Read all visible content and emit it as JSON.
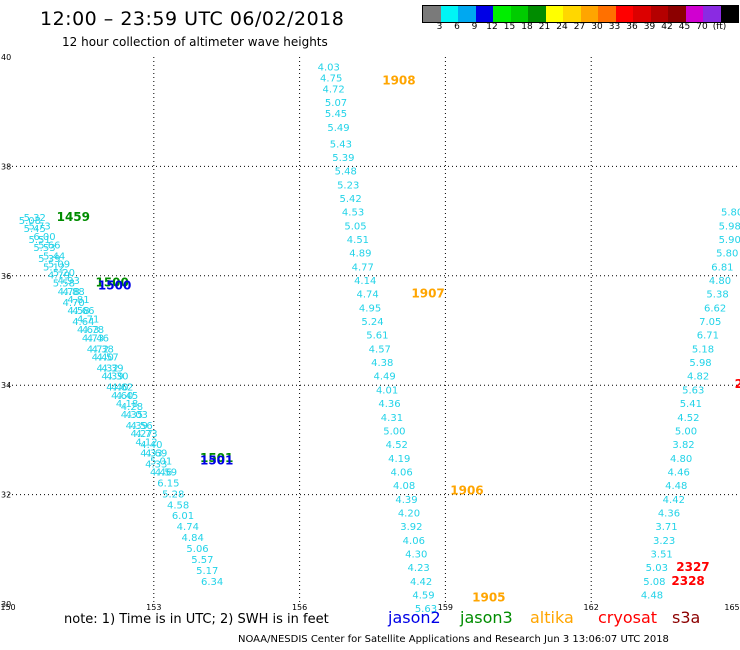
{
  "header": {
    "title": "12:00 – 23:59 UTC 06/02/2018",
    "subtitle": "12 hour collection of altimeter wave heights"
  },
  "colorbar": {
    "colors": [
      "#7a7a7a",
      "#00f5f5",
      "#00a8f0",
      "#0000e6",
      "#00ee00",
      "#00cc00",
      "#008c00",
      "#ffff00",
      "#ffd700",
      "#ffa500",
      "#ff7000",
      "#ff0000",
      "#dc0000",
      "#b40000",
      "#8c0000",
      "#d000d0",
      "#8a2be2",
      "#000000"
    ],
    "labels": [
      "3",
      "6",
      "9",
      "12",
      "15",
      "18",
      "21",
      "24",
      "27",
      "30",
      "33",
      "36",
      "39",
      "42",
      "45",
      "70",
      "(ft)"
    ]
  },
  "axes": {
    "x_ticks": [
      "150",
      "153",
      "156",
      "159",
      "162",
      "165"
    ],
    "y_ticks": [
      "30",
      "32",
      "34",
      "36",
      "38",
      "40"
    ]
  },
  "chart_data": {
    "type": "scatter",
    "xlabel": "",
    "ylabel": "",
    "xlim": [
      150,
      165
    ],
    "ylim": [
      30,
      40
    ],
    "grid": true,
    "swh_color": "#22d3e8",
    "tracks": [
      {
        "points": [
          {
            "x": 150.45,
            "y": 36.95,
            "v": "5.08"
          },
          {
            "x": 150.55,
            "y": 36.8,
            "v": "5.45"
          },
          {
            "x": 150.65,
            "y": 36.6,
            "v": "5.51"
          },
          {
            "x": 150.75,
            "y": 36.45,
            "v": "5.53"
          },
          {
            "x": 150.85,
            "y": 36.25,
            "v": "5.39"
          },
          {
            "x": 150.95,
            "y": 36.1,
            "v": "5.12"
          },
          {
            "x": 151.05,
            "y": 35.95,
            "v": "4.79"
          },
          {
            "x": 151.15,
            "y": 35.8,
            "v": "5.58"
          },
          {
            "x": 151.25,
            "y": 35.65,
            "v": "4.78"
          },
          {
            "x": 151.35,
            "y": 35.45,
            "v": "4.70"
          },
          {
            "x": 151.45,
            "y": 35.3,
            "v": "4.58"
          },
          {
            "x": 151.55,
            "y": 35.1,
            "v": "4.64"
          },
          {
            "x": 151.65,
            "y": 34.95,
            "v": "4.63"
          },
          {
            "x": 151.75,
            "y": 34.8,
            "v": "4.73"
          },
          {
            "x": 151.85,
            "y": 34.6,
            "v": "4.72"
          },
          {
            "x": 151.95,
            "y": 34.45,
            "v": "4.40"
          },
          {
            "x": 152.05,
            "y": 34.25,
            "v": "4.32"
          },
          {
            "x": 152.15,
            "y": 34.1,
            "v": "4.39"
          },
          {
            "x": 152.25,
            "y": 33.9,
            "v": "4.40"
          },
          {
            "x": 152.35,
            "y": 33.75,
            "v": "4.60"
          },
          {
            "x": 152.45,
            "y": 33.6,
            "v": "4.18"
          },
          {
            "x": 152.55,
            "y": 33.4,
            "v": "4.35"
          },
          {
            "x": 152.65,
            "y": 33.2,
            "v": "4.39"
          },
          {
            "x": 152.75,
            "y": 33.05,
            "v": "4.27"
          },
          {
            "x": 152.85,
            "y": 32.9,
            "v": "4.12"
          },
          {
            "x": 152.95,
            "y": 32.7,
            "v": "4.33"
          },
          {
            "x": 153.05,
            "y": 32.5,
            "v": "4.33"
          },
          {
            "x": 153.15,
            "y": 32.35,
            "v": "4.46"
          }
        ]
      },
      {
        "points": [
          {
            "x": 150.55,
            "y": 37.0,
            "v": "5.32"
          },
          {
            "x": 150.65,
            "y": 36.85,
            "v": "5.73"
          },
          {
            "x": 150.75,
            "y": 36.65,
            "v": "6.00"
          },
          {
            "x": 150.85,
            "y": 36.5,
            "v": "5.66"
          },
          {
            "x": 150.95,
            "y": 36.3,
            "v": "5.44"
          },
          {
            "x": 151.05,
            "y": 36.15,
            "v": "5.09"
          },
          {
            "x": 151.15,
            "y": 36.0,
            "v": "5.20"
          },
          {
            "x": 151.25,
            "y": 35.85,
            "v": "4.93"
          },
          {
            "x": 151.35,
            "y": 35.65,
            "v": "4.88"
          },
          {
            "x": 151.45,
            "y": 35.5,
            "v": "4.81"
          },
          {
            "x": 151.55,
            "y": 35.3,
            "v": "4.66"
          },
          {
            "x": 151.65,
            "y": 35.15,
            "v": "4.71"
          },
          {
            "x": 151.75,
            "y": 34.95,
            "v": "4.78"
          },
          {
            "x": 151.85,
            "y": 34.8,
            "v": "4.46"
          },
          {
            "x": 151.95,
            "y": 34.6,
            "v": "4.38"
          },
          {
            "x": 152.05,
            "y": 34.45,
            "v": "4.57"
          },
          {
            "x": 152.15,
            "y": 34.25,
            "v": "4.39"
          },
          {
            "x": 152.25,
            "y": 34.1,
            "v": "4.30"
          },
          {
            "x": 152.35,
            "y": 33.9,
            "v": "4.62"
          },
          {
            "x": 152.45,
            "y": 33.75,
            "v": "4.45"
          },
          {
            "x": 152.55,
            "y": 33.55,
            "v": "4.28"
          },
          {
            "x": 152.65,
            "y": 33.4,
            "v": "4.03"
          },
          {
            "x": 152.75,
            "y": 33.2,
            "v": "4.56"
          },
          {
            "x": 152.85,
            "y": 33.05,
            "v": "4.73"
          },
          {
            "x": 152.95,
            "y": 32.85,
            "v": "4.40"
          },
          {
            "x": 153.05,
            "y": 32.7,
            "v": "4.69"
          },
          {
            "x": 153.15,
            "y": 32.55,
            "v": "5.01"
          },
          {
            "x": 153.25,
            "y": 32.35,
            "v": "4.59"
          },
          {
            "x": 153.3,
            "y": 32.15,
            "v": "6.15"
          },
          {
            "x": 153.4,
            "y": 31.95,
            "v": "5.28"
          },
          {
            "x": 153.5,
            "y": 31.75,
            "v": "4.58"
          },
          {
            "x": 153.6,
            "y": 31.55,
            "v": "6.01"
          },
          {
            "x": 153.7,
            "y": 31.35,
            "v": "4.74"
          },
          {
            "x": 153.8,
            "y": 31.15,
            "v": "4.84"
          },
          {
            "x": 153.9,
            "y": 30.95,
            "v": "5.06"
          },
          {
            "x": 154.0,
            "y": 30.75,
            "v": "5.57"
          },
          {
            "x": 154.1,
            "y": 30.55,
            "v": "5.17"
          },
          {
            "x": 154.2,
            "y": 30.35,
            "v": "6.34"
          }
        ]
      },
      {
        "points": [
          {
            "x": 156.6,
            "y": 39.75,
            "v": "4.03"
          },
          {
            "x": 156.65,
            "y": 39.55,
            "v": "4.75"
          },
          {
            "x": 156.7,
            "y": 39.35,
            "v": "4.72"
          },
          {
            "x": 156.75,
            "y": 39.1,
            "v": "5.07"
          },
          {
            "x": 156.75,
            "y": 38.9,
            "v": "5.45"
          },
          {
            "x": 156.8,
            "y": 38.65,
            "v": "5.49"
          },
          {
            "x": 156.85,
            "y": 38.35,
            "v": "5.43"
          },
          {
            "x": 156.9,
            "y": 38.1,
            "v": "5.39"
          },
          {
            "x": 156.95,
            "y": 37.85,
            "v": "5.48"
          },
          {
            "x": 157.0,
            "y": 37.6,
            "v": "5.23"
          },
          {
            "x": 157.05,
            "y": 37.35,
            "v": "5.42"
          },
          {
            "x": 157.1,
            "y": 37.1,
            "v": "4.53"
          },
          {
            "x": 157.15,
            "y": 36.85,
            "v": "5.05"
          },
          {
            "x": 157.2,
            "y": 36.6,
            "v": "4.51"
          },
          {
            "x": 157.25,
            "y": 36.35,
            "v": "4.89"
          },
          {
            "x": 157.3,
            "y": 36.1,
            "v": "4.77"
          },
          {
            "x": 157.35,
            "y": 35.85,
            "v": "4.14"
          },
          {
            "x": 157.4,
            "y": 35.6,
            "v": "4.74"
          },
          {
            "x": 157.45,
            "y": 35.35,
            "v": "4.95"
          },
          {
            "x": 157.5,
            "y": 35.1,
            "v": "5.24"
          },
          {
            "x": 157.6,
            "y": 34.85,
            "v": "5.61"
          },
          {
            "x": 157.65,
            "y": 34.6,
            "v": "4.57"
          },
          {
            "x": 157.7,
            "y": 34.35,
            "v": "4.38"
          },
          {
            "x": 157.75,
            "y": 34.1,
            "v": "4.49"
          },
          {
            "x": 157.8,
            "y": 33.85,
            "v": "4.01"
          },
          {
            "x": 157.85,
            "y": 33.6,
            "v": "4.36"
          },
          {
            "x": 157.9,
            "y": 33.35,
            "v": "4.31"
          },
          {
            "x": 157.95,
            "y": 33.1,
            "v": "5.00"
          },
          {
            "x": 158.0,
            "y": 32.85,
            "v": "4.52"
          },
          {
            "x": 158.05,
            "y": 32.6,
            "v": "4.19"
          },
          {
            "x": 158.1,
            "y": 32.35,
            "v": "4.06"
          },
          {
            "x": 158.15,
            "y": 32.1,
            "v": "4.08"
          },
          {
            "x": 158.2,
            "y": 31.85,
            "v": "4.39"
          },
          {
            "x": 158.25,
            "y": 31.6,
            "v": "4.20"
          },
          {
            "x": 158.3,
            "y": 31.35,
            "v": "3.92"
          },
          {
            "x": 158.35,
            "y": 31.1,
            "v": "4.06"
          },
          {
            "x": 158.4,
            "y": 30.85,
            "v": "4.30"
          },
          {
            "x": 158.45,
            "y": 30.6,
            "v": "4.23"
          },
          {
            "x": 158.5,
            "y": 30.35,
            "v": "4.42"
          },
          {
            "x": 158.55,
            "y": 30.1,
            "v": "4.59"
          },
          {
            "x": 158.6,
            "y": 29.85,
            "v": "5.63"
          }
        ]
      },
      {
        "points": [
          {
            "x": 164.9,
            "y": 37.1,
            "v": "5.80"
          },
          {
            "x": 164.85,
            "y": 36.85,
            "v": "5.98"
          },
          {
            "x": 164.85,
            "y": 36.6,
            "v": "5.90"
          },
          {
            "x": 164.8,
            "y": 36.35,
            "v": "5.80"
          },
          {
            "x": 164.7,
            "y": 36.1,
            "v": "6.81"
          },
          {
            "x": 164.65,
            "y": 35.85,
            "v": "4.80"
          },
          {
            "x": 164.6,
            "y": 35.6,
            "v": "5.38"
          },
          {
            "x": 164.55,
            "y": 35.35,
            "v": "6.62"
          },
          {
            "x": 164.45,
            "y": 35.1,
            "v": "7.05"
          },
          {
            "x": 164.4,
            "y": 34.85,
            "v": "6.71"
          },
          {
            "x": 164.3,
            "y": 34.6,
            "v": "5.18"
          },
          {
            "x": 164.25,
            "y": 34.35,
            "v": "5.98"
          },
          {
            "x": 164.2,
            "y": 34.1,
            "v": "4.82"
          },
          {
            "x": 164.1,
            "y": 33.85,
            "v": "5.63"
          },
          {
            "x": 164.05,
            "y": 33.6,
            "v": "5.41"
          },
          {
            "x": 164.0,
            "y": 33.35,
            "v": "4.52"
          },
          {
            "x": 163.95,
            "y": 33.1,
            "v": "5.00"
          },
          {
            "x": 163.9,
            "y": 32.85,
            "v": "3.82"
          },
          {
            "x": 163.85,
            "y": 32.6,
            "v": "4.80"
          },
          {
            "x": 163.8,
            "y": 32.35,
            "v": "4.46"
          },
          {
            "x": 163.75,
            "y": 32.1,
            "v": "4.48"
          },
          {
            "x": 163.7,
            "y": 31.85,
            "v": "4.42"
          },
          {
            "x": 163.6,
            "y": 31.6,
            "v": "4.36"
          },
          {
            "x": 163.55,
            "y": 31.35,
            "v": "3.71"
          },
          {
            "x": 163.5,
            "y": 31.1,
            "v": "3.23"
          },
          {
            "x": 163.45,
            "y": 30.85,
            "v": "3.51"
          },
          {
            "x": 163.35,
            "y": 30.6,
            "v": "5.03"
          },
          {
            "x": 163.3,
            "y": 30.35,
            "v": "5.08"
          },
          {
            "x": 163.25,
            "y": 30.1,
            "v": "4.48"
          }
        ]
      }
    ],
    "time_labels": [
      {
        "x": 151.0,
        "y": 37.0,
        "text": "1459",
        "mission": "jason3"
      },
      {
        "x": 151.8,
        "y": 35.8,
        "text": "1500",
        "mission": "jason3"
      },
      {
        "x": 151.85,
        "y": 35.75,
        "text": "1500",
        "mission": "jason2"
      },
      {
        "x": 153.95,
        "y": 32.6,
        "text": "1501",
        "mission": "jason3"
      },
      {
        "x": 153.95,
        "y": 32.55,
        "text": "1501",
        "mission": "jason2"
      },
      {
        "x": 157.7,
        "y": 39.5,
        "text": "1908",
        "mission": "altika"
      },
      {
        "x": 158.3,
        "y": 35.6,
        "text": "1907",
        "mission": "altika"
      },
      {
        "x": 159.1,
        "y": 32.0,
        "text": "1906",
        "mission": "altika"
      },
      {
        "x": 159.55,
        "y": 30.05,
        "text": "1905",
        "mission": "altika"
      },
      {
        "x": 164.95,
        "y": 33.95,
        "text": "2",
        "mission": "cryosat"
      },
      {
        "x": 163.75,
        "y": 30.6,
        "text": "2327",
        "mission": "cryosat"
      },
      {
        "x": 163.65,
        "y": 30.35,
        "text": "2328",
        "mission": "cryosat"
      }
    ]
  },
  "note": "note:  1) Time is in UTC;  2) SWH is in feet",
  "legend": [
    {
      "name": "jason2",
      "color": "#0000e6"
    },
    {
      "name": "jason3",
      "color": "#008c00"
    },
    {
      "name": "altika",
      "color": "#ffa500"
    },
    {
      "name": "cryosat",
      "color": "#ff0000"
    },
    {
      "name": "s3a",
      "color": "#8c0000"
    }
  ],
  "footer": "NOAA/NESDIS Center for Satellite Applications and Research     Jun  3 13:06:07 UTC 2018"
}
